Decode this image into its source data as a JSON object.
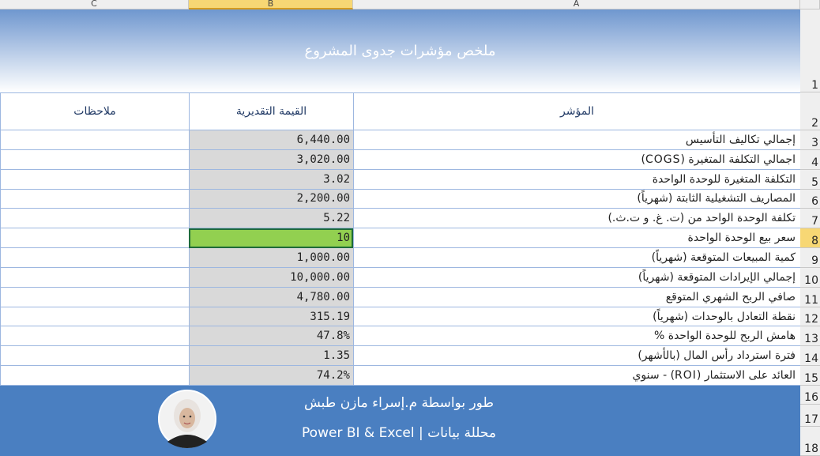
{
  "column_letters": [
    "C",
    "B",
    "A"
  ],
  "title": "ملخص مؤشرات جدوى المشروع",
  "table": {
    "headers": [
      "ملاحظات",
      "القيمة التقديرية",
      "المؤشر"
    ],
    "rows": [
      [
        "إجمالي تكاليف التأسيس",
        "6,440.00"
      ],
      [
        "اجمالي التكلفة المتغيرة (COGS)",
        "3,020.00"
      ],
      [
        "التكلفة المتغيرة للوحدة الواحدة",
        "3.02"
      ],
      [
        "المصاريف التشغيلية الثابتة (شهرياً)",
        "2,200.00"
      ],
      [
        "تكلفة الوحدة الواحد من (ت. غ. و ت.ث.)",
        "5.22"
      ],
      [
        "سعر بيع الوحدة الواحدة",
        "10"
      ],
      [
        "كمية المبيعات المتوقعة (شهرياً)",
        "1,000.00"
      ],
      [
        "إجمالي الإيرادات المتوقعة (شهرياً)",
        "10,000.00"
      ],
      [
        "صافي الربح الشهري المتوقع",
        "4,780.00"
      ],
      [
        "نقطة التعادل بالوحدات (شهرياً)",
        "315.19"
      ],
      [
        "هامش الربح للوحدة الواحدة %",
        "47.8%"
      ],
      [
        "فترة استرداد رأس المال (بالأشهر)",
        "1.35"
      ],
      [
        "العائد على الاستثمار (ROI) - سنوي",
        "74.2%"
      ]
    ]
  },
  "row_numbers": [
    "1",
    "2",
    "3",
    "4",
    "5",
    "6",
    "7",
    "8",
    "9",
    "10",
    "11",
    "12",
    "13",
    "14",
    "15",
    "16",
    "17",
    "18"
  ],
  "footer": {
    "credit": "طور بواسطة م.إسراء مازن طبش",
    "role": "محللة بيانات | Power BI & Excel"
  }
}
